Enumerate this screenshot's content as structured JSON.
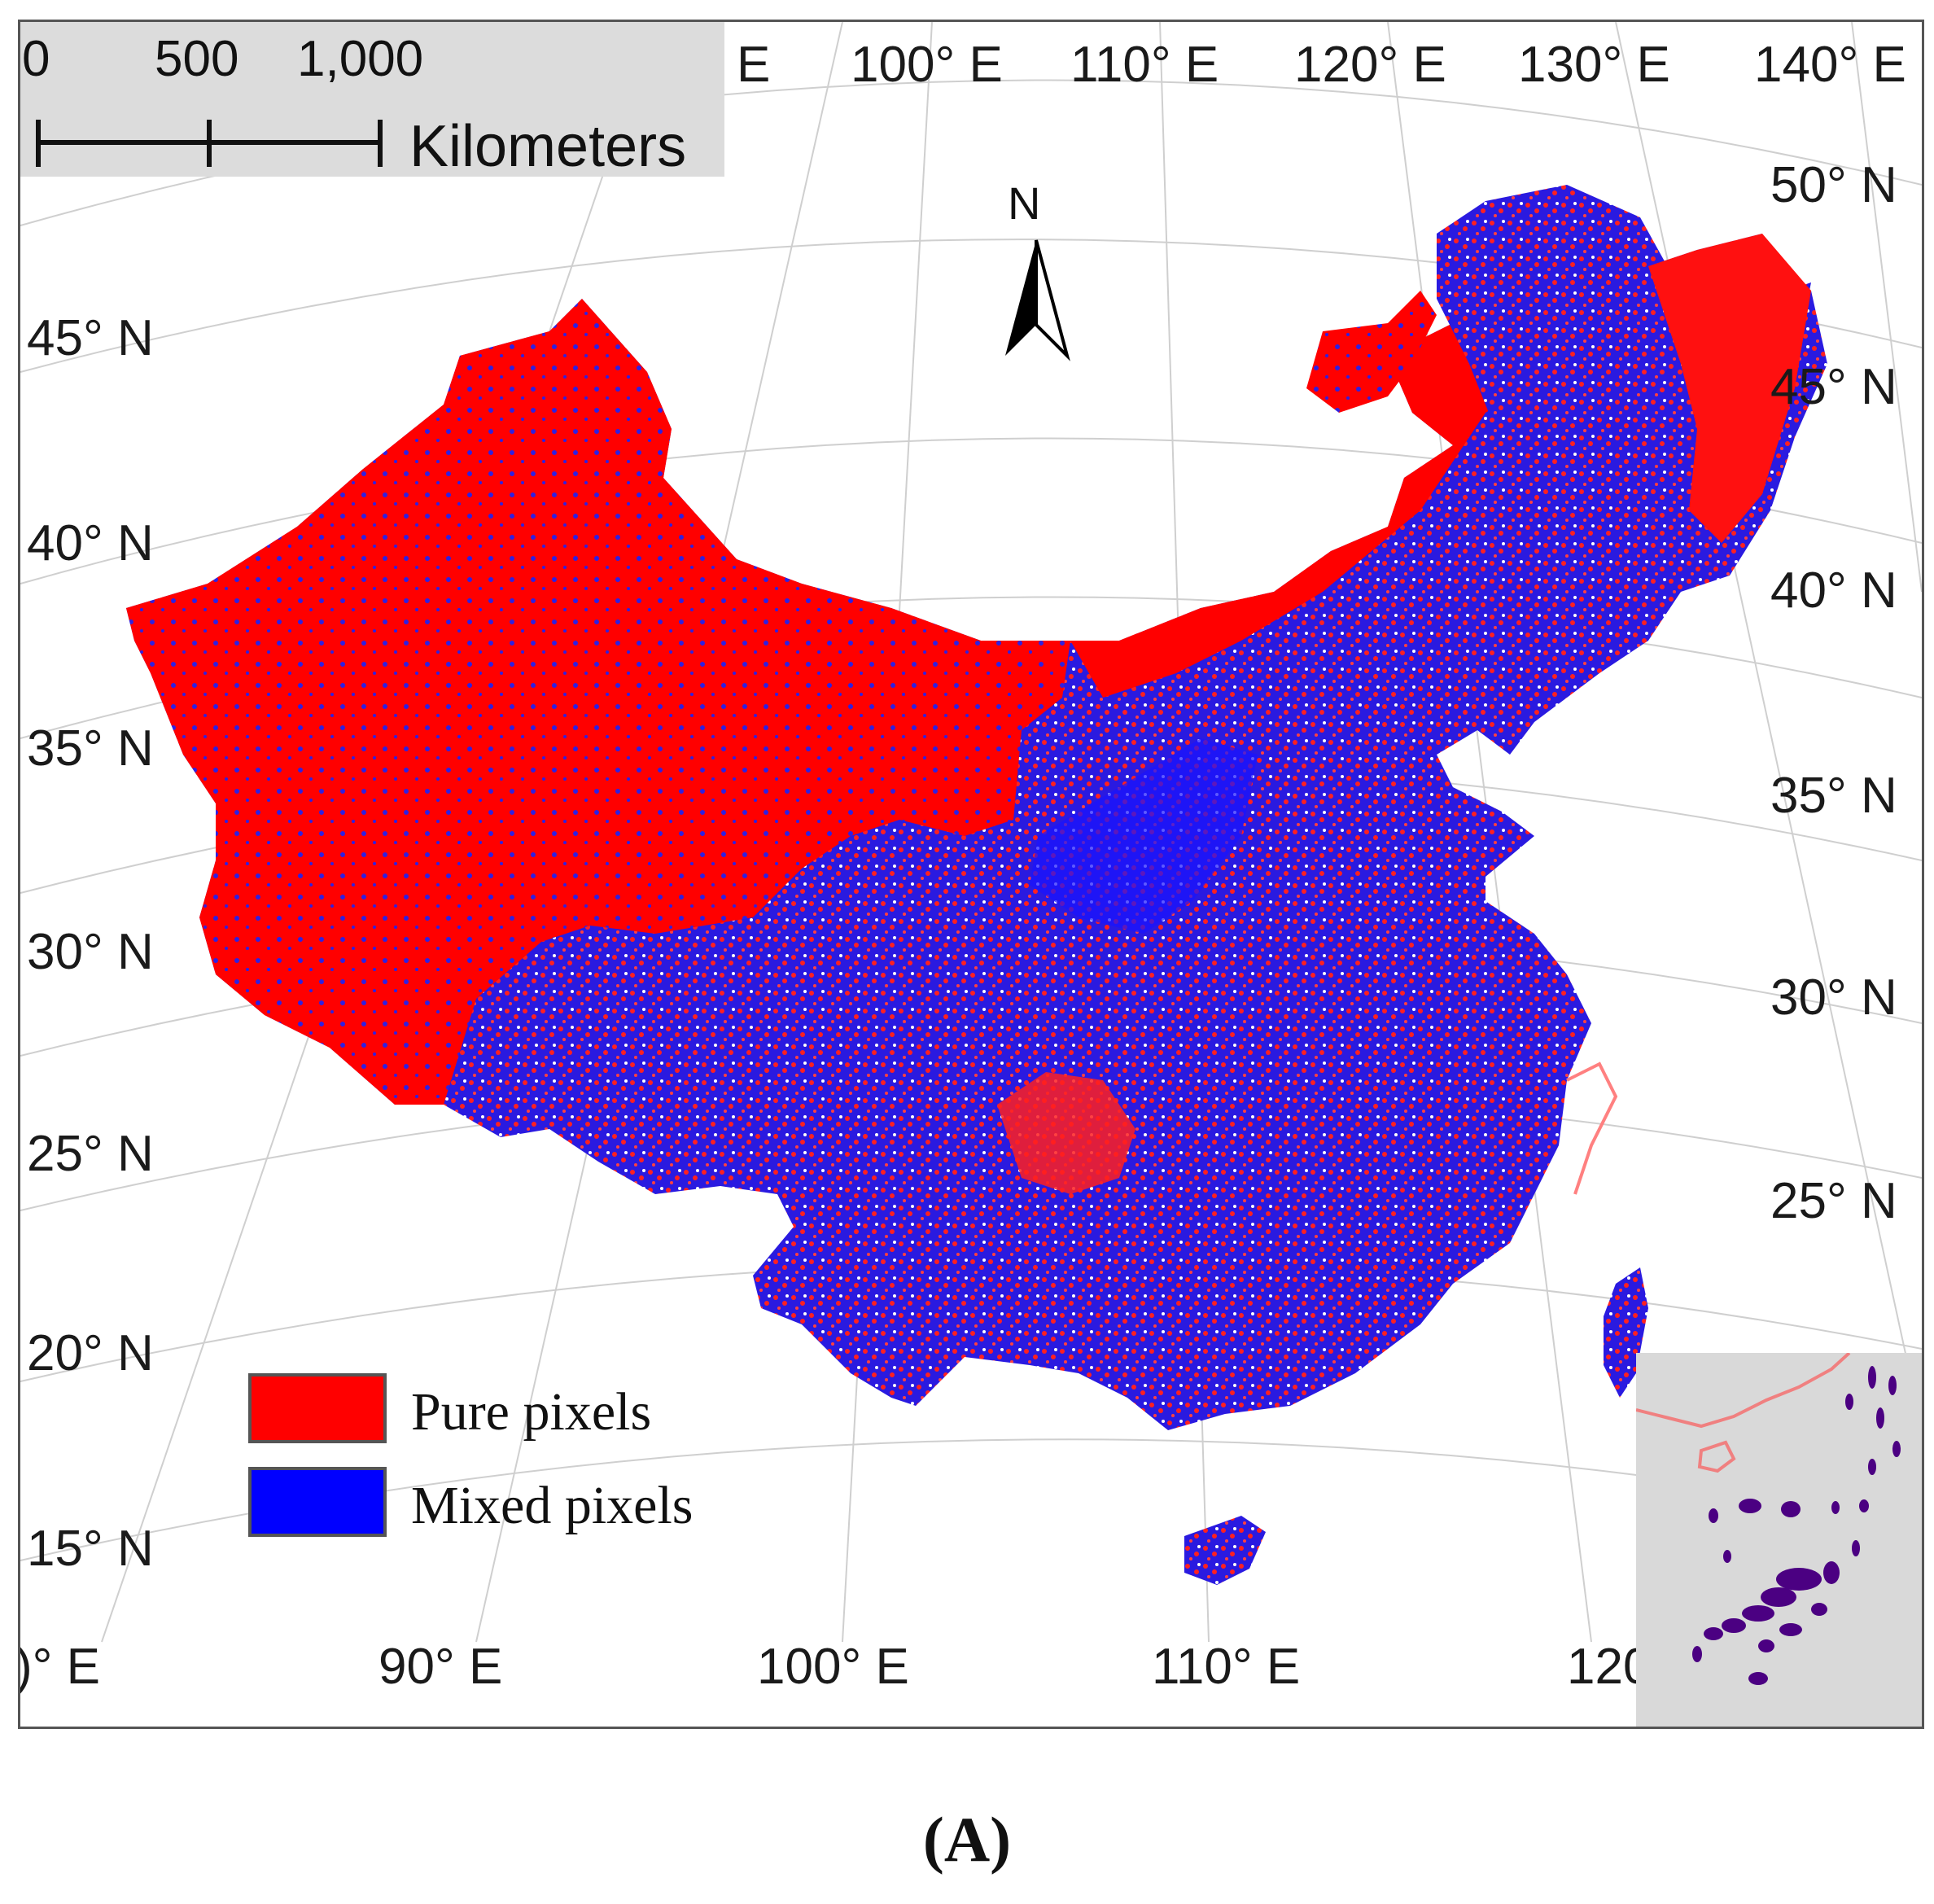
{
  "scale_bar": {
    "ticks": [
      "0",
      "500",
      "1,000"
    ],
    "unit": "Kilometers"
  },
  "north_arrow": {
    "label": "N"
  },
  "top_longitudes": [
    "E",
    "100° E",
    "110° E",
    "120° E",
    "130° E",
    "140° E"
  ],
  "bottom_longitudes": [
    ")° E",
    "90° E",
    "100° E",
    "110° E",
    "120"
  ],
  "left_latitudes": [
    "45° N",
    "40° N",
    "35° N",
    "30° N",
    "25° N",
    "20° N",
    "15° N"
  ],
  "right_latitudes": [
    "50° N",
    "45° N",
    "40° N",
    "35° N",
    "30° N",
    "25° N"
  ],
  "legend": [
    {
      "label": "Pure pixels",
      "color": "#ff0000"
    },
    {
      "label": "Mixed pixels",
      "color": "#0000ff"
    }
  ],
  "colors": {
    "pure": "#ff0000",
    "mixed": "#1a1aff",
    "inset_bg": "#d9d9d9",
    "inset_islands": "#4b0082",
    "inset_coast": "#f08080"
  },
  "caption": "(A)"
}
